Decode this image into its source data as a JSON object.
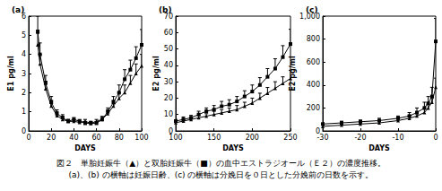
{
  "chart_data": [
    {
      "type": "line",
      "title": "(a)",
      "x_label": "DAYS",
      "y_label": "E1 pg/ml",
      "xlim": [
        0,
        100
      ],
      "xticks": [
        0,
        20,
        40,
        60,
        80,
        100
      ],
      "ylim": [
        0,
        6
      ],
      "yticks": [
        0,
        1,
        2,
        3,
        4,
        5,
        6
      ],
      "x": [
        8,
        10,
        15,
        20,
        25,
        30,
        35,
        40,
        45,
        50,
        55,
        60,
        65,
        70,
        75,
        80,
        85,
        90,
        95,
        100
      ],
      "series": [
        {
          "color": "#000000",
          "marker": "triangle",
          "line_style": "solid",
          "values": [
            4.5,
            3.5,
            2.2,
            1.3,
            0.8,
            0.6,
            0.5,
            0.5,
            0.45,
            0.5,
            0.4,
            0.5,
            0.6,
            0.9,
            1.3,
            1.7,
            2.0,
            2.5,
            3.0,
            3.4
          ],
          "errors": [
            0.6,
            0.5,
            0.4,
            0.3,
            0.2,
            0.15,
            0.1,
            0.1,
            0.1,
            0.1,
            0.1,
            0.1,
            0.15,
            0.2,
            0.3,
            0.3,
            0.4,
            0.4,
            0.5,
            0.6
          ]
        },
        {
          "color": "#000000",
          "marker": "square",
          "line_style": "solid",
          "values": [
            5.2,
            4.0,
            2.5,
            1.5,
            0.9,
            0.7,
            0.5,
            0.6,
            0.5,
            0.4,
            0.4,
            0.4,
            0.6,
            1.0,
            1.5,
            2.0,
            2.7,
            3.2,
            3.8,
            4.5
          ],
          "errors": [
            0.8,
            0.6,
            0.4,
            0.3,
            0.2,
            0.15,
            0.1,
            0.1,
            0.1,
            0.1,
            0.1,
            0.1,
            0.15,
            0.2,
            0.3,
            0.4,
            0.5,
            0.5,
            0.6,
            0.8
          ]
        }
      ]
    },
    {
      "type": "line",
      "title": "(b)",
      "x_label": "DAYS",
      "y_label": "E2 pg/ml",
      "xlim": [
        100,
        250
      ],
      "xticks": [
        100,
        150,
        200,
        250
      ],
      "ylim": [
        0,
        70
      ],
      "yticks": [
        0,
        10,
        20,
        30,
        40,
        50,
        60,
        70
      ],
      "x": [
        100,
        110,
        120,
        130,
        140,
        150,
        160,
        170,
        180,
        190,
        200,
        210,
        220,
        230,
        240,
        250
      ],
      "series": [
        {
          "color": "#000000",
          "marker": "triangle",
          "line_style": "solid",
          "values": [
            5,
            6,
            7,
            8,
            9,
            10,
            11,
            12,
            13,
            15,
            17,
            20,
            23,
            26,
            29,
            32
          ],
          "errors": [
            1,
            1,
            1,
            1.5,
            1.5,
            2,
            2,
            2,
            2.5,
            2.5,
            3,
            3,
            3.5,
            4,
            4,
            5
          ]
        },
        {
          "color": "#000000",
          "marker": "square",
          "line_style": "solid",
          "values": [
            6,
            7,
            8,
            10,
            12,
            13,
            15,
            16,
            18,
            21,
            24,
            28,
            33,
            38,
            45,
            53
          ],
          "errors": [
            1,
            1.5,
            1.5,
            2,
            2,
            2.5,
            3,
            3,
            3,
            3.5,
            4,
            4.5,
            5,
            6,
            7,
            9
          ]
        }
      ]
    },
    {
      "type": "line",
      "title": "(c)",
      "x_label": "DAYS",
      "y_label": "E2 pg/ml",
      "xlim": [
        -30,
        0
      ],
      "xticks": [
        -30,
        -20,
        -10,
        0
      ],
      "ylim": [
        0,
        1000
      ],
      "yticks": [
        0,
        200,
        400,
        600,
        800,
        1000
      ],
      "x": [
        -30,
        -25,
        -20,
        -15,
        -10,
        -7,
        -5,
        -3,
        -2,
        -1,
        0
      ],
      "series": [
        {
          "color": "#000000",
          "marker": "triangle",
          "line_style": "solid",
          "values": [
            40,
            50,
            60,
            70,
            90,
            110,
            130,
            160,
            200,
            250,
            380
          ],
          "errors": [
            10,
            10,
            10,
            15,
            15,
            20,
            20,
            30,
            30,
            40,
            80
          ]
        },
        {
          "color": "#000000",
          "marker": "square",
          "line_style": "solid",
          "values": [
            60,
            70,
            80,
            90,
            110,
            130,
            160,
            200,
            240,
            300,
            780
          ],
          "errors": [
            10,
            15,
            15,
            20,
            20,
            30,
            40,
            50,
            60,
            80,
            200
          ]
        }
      ]
    }
  ],
  "caption": [
    "図２　単胎妊娠牛（▲）と双胎妊娠牛（■）の血中エストラジオール（Ｅ２）の濃度推移。",
    "(a)、(b) の横軸は妊娠日齢、(c) の横軸は分娩日を０日とした分娩前の日数を示す。"
  ]
}
